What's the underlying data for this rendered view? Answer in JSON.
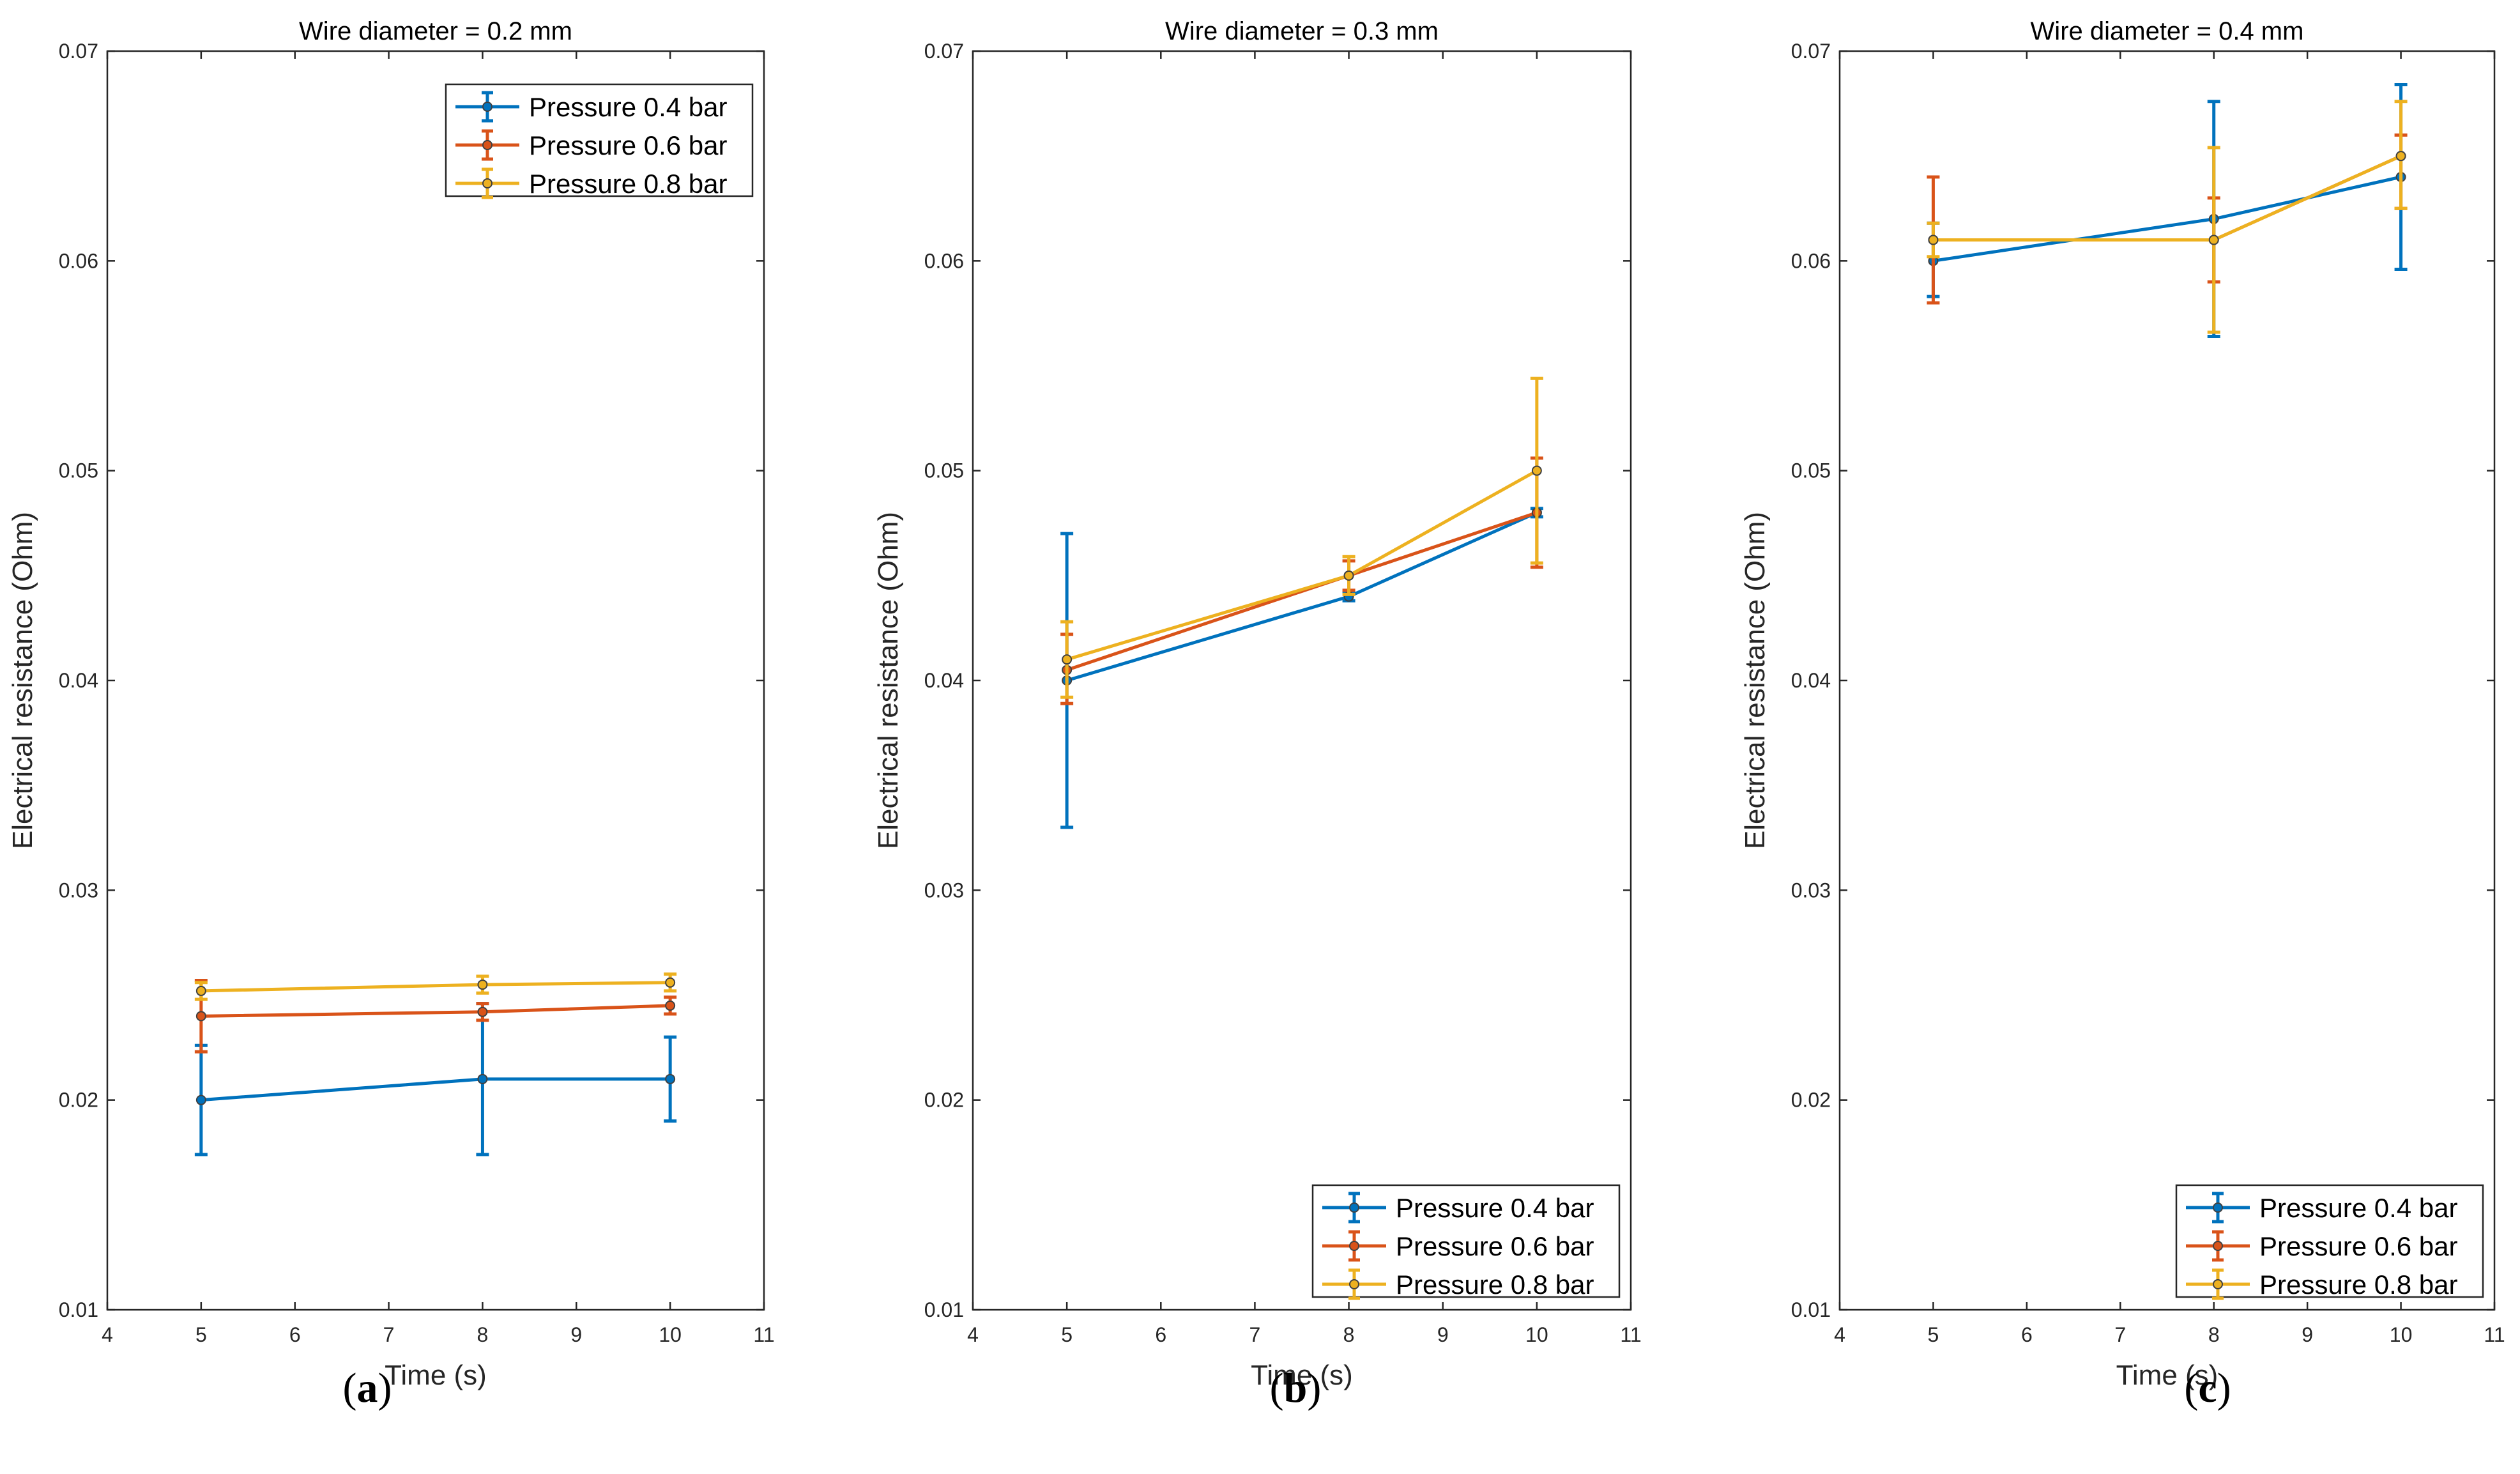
{
  "chart_data": [
    {
      "type": "line",
      "panel_label": "a",
      "title": "Wire diameter = 0.2 mm",
      "xlabel": "Time (s)",
      "ylabel": "Electrical resistance (Ohm)",
      "xlim": [
        4,
        11
      ],
      "ylim": [
        0.01,
        0.07
      ],
      "xticks": [
        4,
        5,
        6,
        7,
        8,
        9,
        10,
        11
      ],
      "yticks": [
        0.01,
        0.02,
        0.03,
        0.04,
        0.05,
        0.06,
        0.07
      ],
      "xtick_labels": [
        "4",
        "5",
        "6",
        "7",
        "8",
        "9",
        "10",
        "11"
      ],
      "ytick_labels": [
        "0.01",
        "0.02",
        "0.03",
        "0.04",
        "0.05",
        "0.06",
        "0.07"
      ],
      "legend_position": "top-right",
      "series": [
        {
          "name": "Pressure 0.4 bar",
          "color": "#0072BD",
          "x": [
            5,
            8,
            10
          ],
          "y": [
            0.02,
            0.021,
            0.021
          ],
          "lower": [
            0.0174,
            0.0174,
            0.019
          ],
          "upper": [
            0.0226,
            0.0246,
            0.023
          ]
        },
        {
          "name": "Pressure 0.6 bar",
          "color": "#D95319",
          "x": [
            5,
            8,
            10
          ],
          "y": [
            0.024,
            0.0242,
            0.0245
          ],
          "lower": [
            0.0223,
            0.0238,
            0.0241
          ],
          "upper": [
            0.0257,
            0.0246,
            0.0249
          ]
        },
        {
          "name": "Pressure 0.8 bar",
          "color": "#EDB120",
          "x": [
            5,
            8,
            10
          ],
          "y": [
            0.0252,
            0.0255,
            0.0256
          ],
          "lower": [
            0.0248,
            0.0251,
            0.0252
          ],
          "upper": [
            0.0256,
            0.0259,
            0.026
          ]
        }
      ]
    },
    {
      "type": "line",
      "panel_label": "b",
      "title": "Wire diameter = 0.3 mm",
      "xlabel": "Time (s)",
      "ylabel": "Electrical resistance (Ohm)",
      "xlim": [
        4,
        11
      ],
      "ylim": [
        0.01,
        0.07
      ],
      "xticks": [
        4,
        5,
        6,
        7,
        8,
        9,
        10,
        11
      ],
      "yticks": [
        0.01,
        0.02,
        0.03,
        0.04,
        0.05,
        0.06,
        0.07
      ],
      "xtick_labels": [
        "4",
        "5",
        "6",
        "7",
        "8",
        "9",
        "10",
        "11"
      ],
      "ytick_labels": [
        "0.01",
        "0.02",
        "0.03",
        "0.04",
        "0.05",
        "0.06",
        "0.07"
      ],
      "legend_position": "bottom-right",
      "series": [
        {
          "name": "Pressure 0.4 bar",
          "color": "#0072BD",
          "x": [
            5,
            8,
            10
          ],
          "y": [
            0.04,
            0.044,
            0.048
          ],
          "lower": [
            0.033,
            0.0438,
            0.0478
          ],
          "upper": [
            0.047,
            0.0442,
            0.0482
          ]
        },
        {
          "name": "Pressure 0.6 bar",
          "color": "#D95319",
          "x": [
            5,
            8,
            10
          ],
          "y": [
            0.0405,
            0.045,
            0.048
          ],
          "lower": [
            0.0389,
            0.0443,
            0.0454
          ],
          "upper": [
            0.0422,
            0.0457,
            0.0506
          ]
        },
        {
          "name": "Pressure 0.8 bar",
          "color": "#EDB120",
          "x": [
            5,
            8,
            10
          ],
          "y": [
            0.041,
            0.045,
            0.05
          ],
          "lower": [
            0.0392,
            0.0441,
            0.0456
          ],
          "upper": [
            0.0428,
            0.0459,
            0.0544
          ]
        }
      ]
    },
    {
      "type": "line",
      "panel_label": "c",
      "title": "Wire diameter = 0.4 mm",
      "xlabel": "Time (s)",
      "ylabel": "Electrical resistance (Ohm)",
      "xlim": [
        4,
        11
      ],
      "ylim": [
        0.01,
        0.07
      ],
      "xticks": [
        4,
        5,
        6,
        7,
        8,
        9,
        10,
        11
      ],
      "yticks": [
        0.01,
        0.02,
        0.03,
        0.04,
        0.05,
        0.06,
        0.07
      ],
      "xtick_labels": [
        "4",
        "5",
        "6",
        "7",
        "8",
        "9",
        "10",
        "11"
      ],
      "ytick_labels": [
        "0.01",
        "0.02",
        "0.03",
        "0.04",
        "0.05",
        "0.06",
        "0.07"
      ],
      "legend_position": "bottom-right",
      "series": [
        {
          "name": "Pressure 0.4 bar",
          "color": "#0072BD",
          "x": [
            5,
            8,
            10
          ],
          "y": [
            0.06,
            0.062,
            0.064
          ],
          "lower": [
            0.0583,
            0.0564,
            0.0596
          ],
          "upper": [
            0.0618,
            0.0676,
            0.0684
          ]
        },
        {
          "name": "Pressure 0.6 bar",
          "color": "#D95319",
          "x": [
            5,
            8,
            10
          ],
          "y": [
            0.061,
            0.061,
            0.065
          ],
          "lower": [
            0.058,
            0.059,
            0.0625
          ],
          "upper": [
            0.064,
            0.063,
            0.066
          ]
        },
        {
          "name": "Pressure 0.8 bar",
          "color": "#EDB120",
          "x": [
            5,
            8,
            10
          ],
          "y": [
            0.061,
            0.061,
            0.065
          ],
          "lower": [
            0.0602,
            0.0566,
            0.0625
          ],
          "upper": [
            0.0618,
            0.0654,
            0.0676
          ]
        }
      ]
    }
  ]
}
